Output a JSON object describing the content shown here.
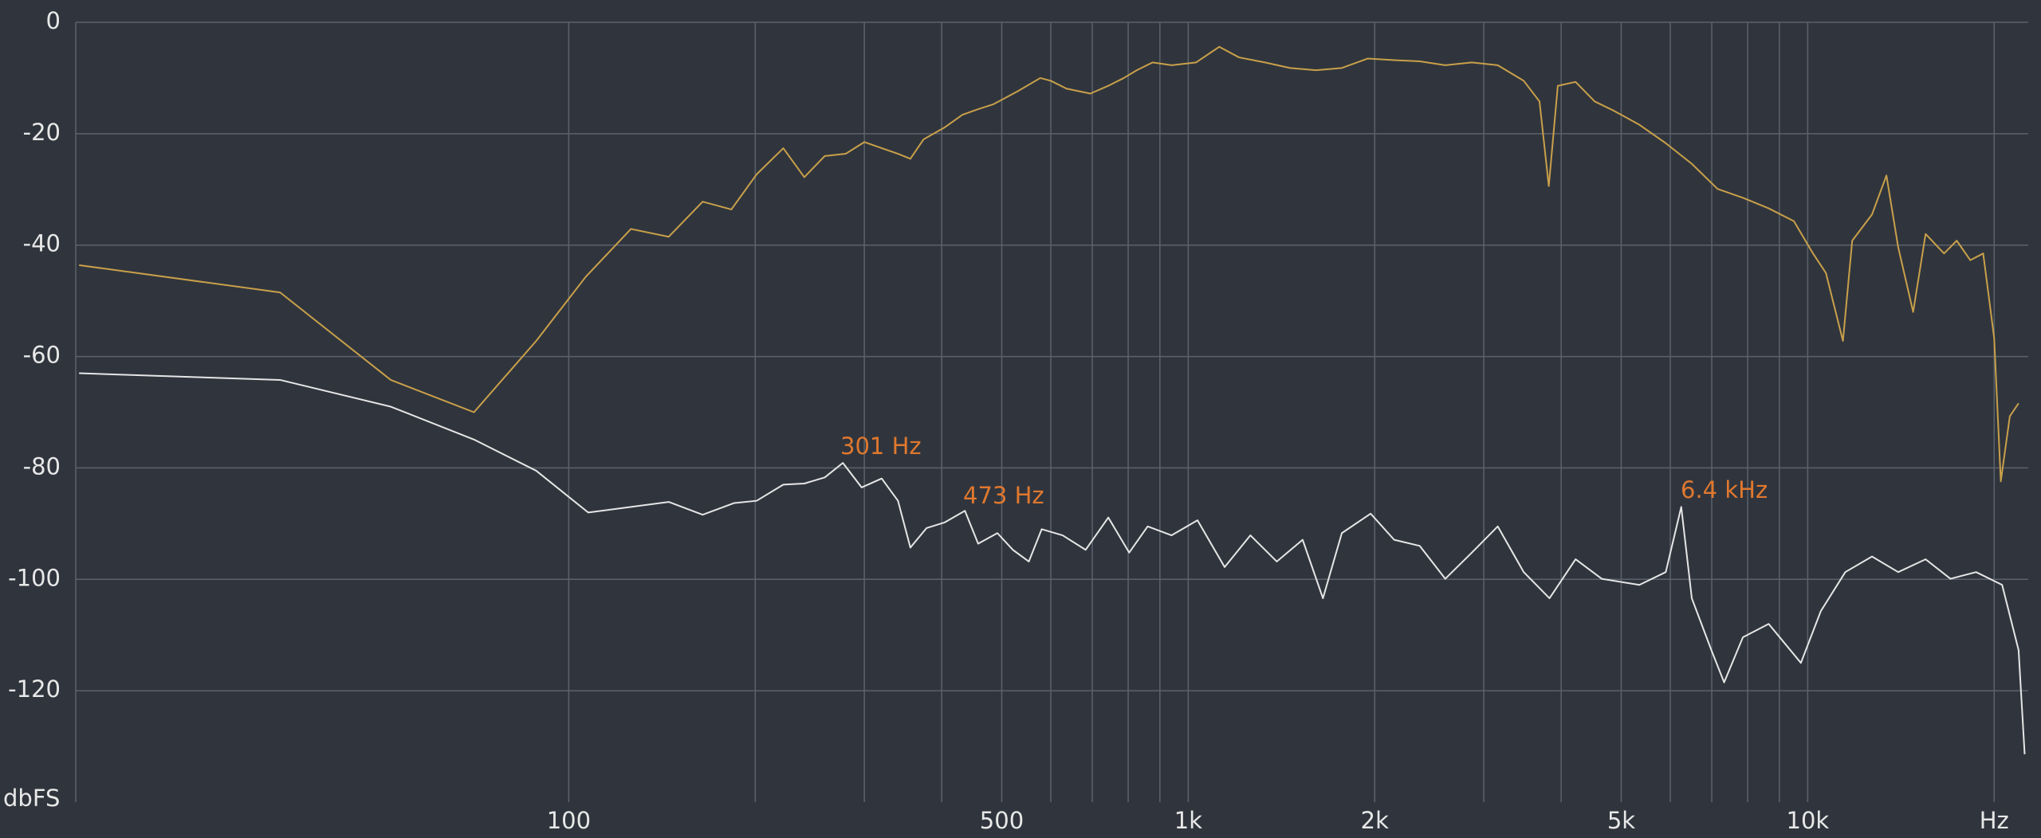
{
  "chart_data": {
    "type": "line",
    "ylabel": "dbFS",
    "xscale": "log",
    "grid": true,
    "background": "#30353d",
    "xlim": [
      16,
      22700
    ],
    "ylim": [
      -140,
      0
    ],
    "yticks": [
      0,
      -20,
      -40,
      -60,
      -80,
      -100,
      -120
    ],
    "xticks": [
      100,
      500,
      {
        "value": 1000,
        "label": "1k"
      },
      {
        "value": 2000,
        "label": "2k"
      },
      {
        "value": 5000,
        "label": "5k"
      },
      {
        "value": 10000,
        "label": "10k"
      },
      {
        "value": 20000,
        "label": "Hz"
      }
    ],
    "x_minor_ticks": [
      200,
      300,
      400,
      600,
      700,
      800,
      900,
      3000,
      4000,
      6000,
      7000,
      8000,
      9000
    ],
    "annotations": [
      "301 Hz",
      "473 Hz",
      "6.4  kHz"
    ],
    "annotation_color": "#e0782e",
    "series": [
      {
        "color": "#c9a04a",
        "x": [
          16.2,
          34.2,
          51.6,
          70.3,
          88.6,
          106.5,
          126,
          145,
          164.5,
          183,
          201,
          222,
          240,
          259,
          280,
          300,
          324,
          340,
          356,
          374,
          404,
          432,
          458,
          485,
          530,
          577,
          600,
          636,
          695,
          743,
          787,
          826,
          876,
          940,
          1030,
          1122,
          1208,
          1330,
          1460,
          1607,
          1770,
          1950,
          2150,
          2365,
          2600,
          2870,
          3160,
          3480,
          3690,
          3820,
          3950,
          4220,
          4530,
          4870,
          5350,
          5900,
          6500,
          7150,
          7860,
          8650,
          9500,
          10200,
          10700,
          11400,
          11800,
          12700,
          13400,
          14000,
          14800,
          15500,
          16600,
          17400,
          18300,
          19200,
          20000,
          20500,
          21200,
          21900
        ],
        "values": [
          -43.6,
          -48.5,
          -64.2,
          -70,
          -57.2,
          -45.7,
          -37.1,
          -38.5,
          -32.2,
          -33.6,
          -27.3,
          -22.6,
          -27.8,
          -24,
          -23.6,
          -21.5,
          -22.8,
          -23.6,
          -24.5,
          -21,
          -18.9,
          -16.6,
          -15.6,
          -14.7,
          -12.4,
          -10,
          -10.5,
          -11.9,
          -12.8,
          -11.4,
          -10,
          -8.6,
          -7.2,
          -7.7,
          -7.2,
          -4.4,
          -6.3,
          -7.2,
          -8.2,
          -8.6,
          -8.2,
          -6.5,
          -6.8,
          -7,
          -7.7,
          -7.2,
          -7.7,
          -10.5,
          -14.2,
          -29.4,
          -11.4,
          -10.7,
          -14.2,
          -15.9,
          -18.4,
          -21.7,
          -25.4,
          -29.9,
          -31.5,
          -33.4,
          -35.7,
          -41.5,
          -45,
          -57.2,
          -39.2,
          -34.5,
          -27.5,
          -40.4,
          -52,
          -38,
          -41.5,
          -39.2,
          -42.7,
          -41.5,
          -56.7,
          -82.4,
          -70.7,
          -68.4
        ]
      },
      {
        "color": "#e6e6e6",
        "x": [
          16.2,
          34.2,
          51.6,
          70.3,
          88.6,
          107.5,
          126,
          145,
          164.5,
          185,
          201,
          222,
          240,
          259,
          277,
          297,
          320,
          340,
          356,
          378,
          404,
          436,
          458,
          492,
          521,
          553,
          580,
          627,
          683,
          743,
          803,
          860,
          940,
          1035,
          1145,
          1260,
          1390,
          1530,
          1650,
          1770,
          1970,
          2150,
          2365,
          2600,
          2870,
          3160,
          3480,
          3830,
          4220,
          4650,
          5350,
          5900,
          6250,
          6500,
          6990,
          7330,
          7860,
          8650,
          9750,
          10500,
          11500,
          12700,
          14000,
          15500,
          17000,
          18700,
          20600,
          21900,
          22400
        ],
        "values": [
          -63,
          -64.2,
          -69,
          -74.9,
          -80.5,
          -88,
          -87,
          -86.1,
          -88.4,
          -86.3,
          -85.9,
          -83,
          -82.8,
          -81.7,
          -79.1,
          -83.5,
          -81.9,
          -85.9,
          -94.3,
          -90.8,
          -89.8,
          -87.7,
          -93.6,
          -91.7,
          -94.7,
          -96.8,
          -91,
          -92.1,
          -94.7,
          -88.9,
          -95.2,
          -90.5,
          -92.1,
          -89.4,
          -97.8,
          -92.1,
          -96.8,
          -92.9,
          -103.4,
          -91.7,
          -88.2,
          -92.9,
          -94,
          -99.9,
          -95.2,
          -90.5,
          -98.7,
          -103.4,
          -96.4,
          -99.9,
          -101,
          -98.7,
          -87,
          -103.4,
          -112.7,
          -118.5,
          -110.4,
          -108,
          -115,
          -105.7,
          -98.7,
          -95.9,
          -98.7,
          -96.4,
          -99.9,
          -98.7,
          -101,
          -112.7,
          -131.4
        ]
      }
    ]
  }
}
